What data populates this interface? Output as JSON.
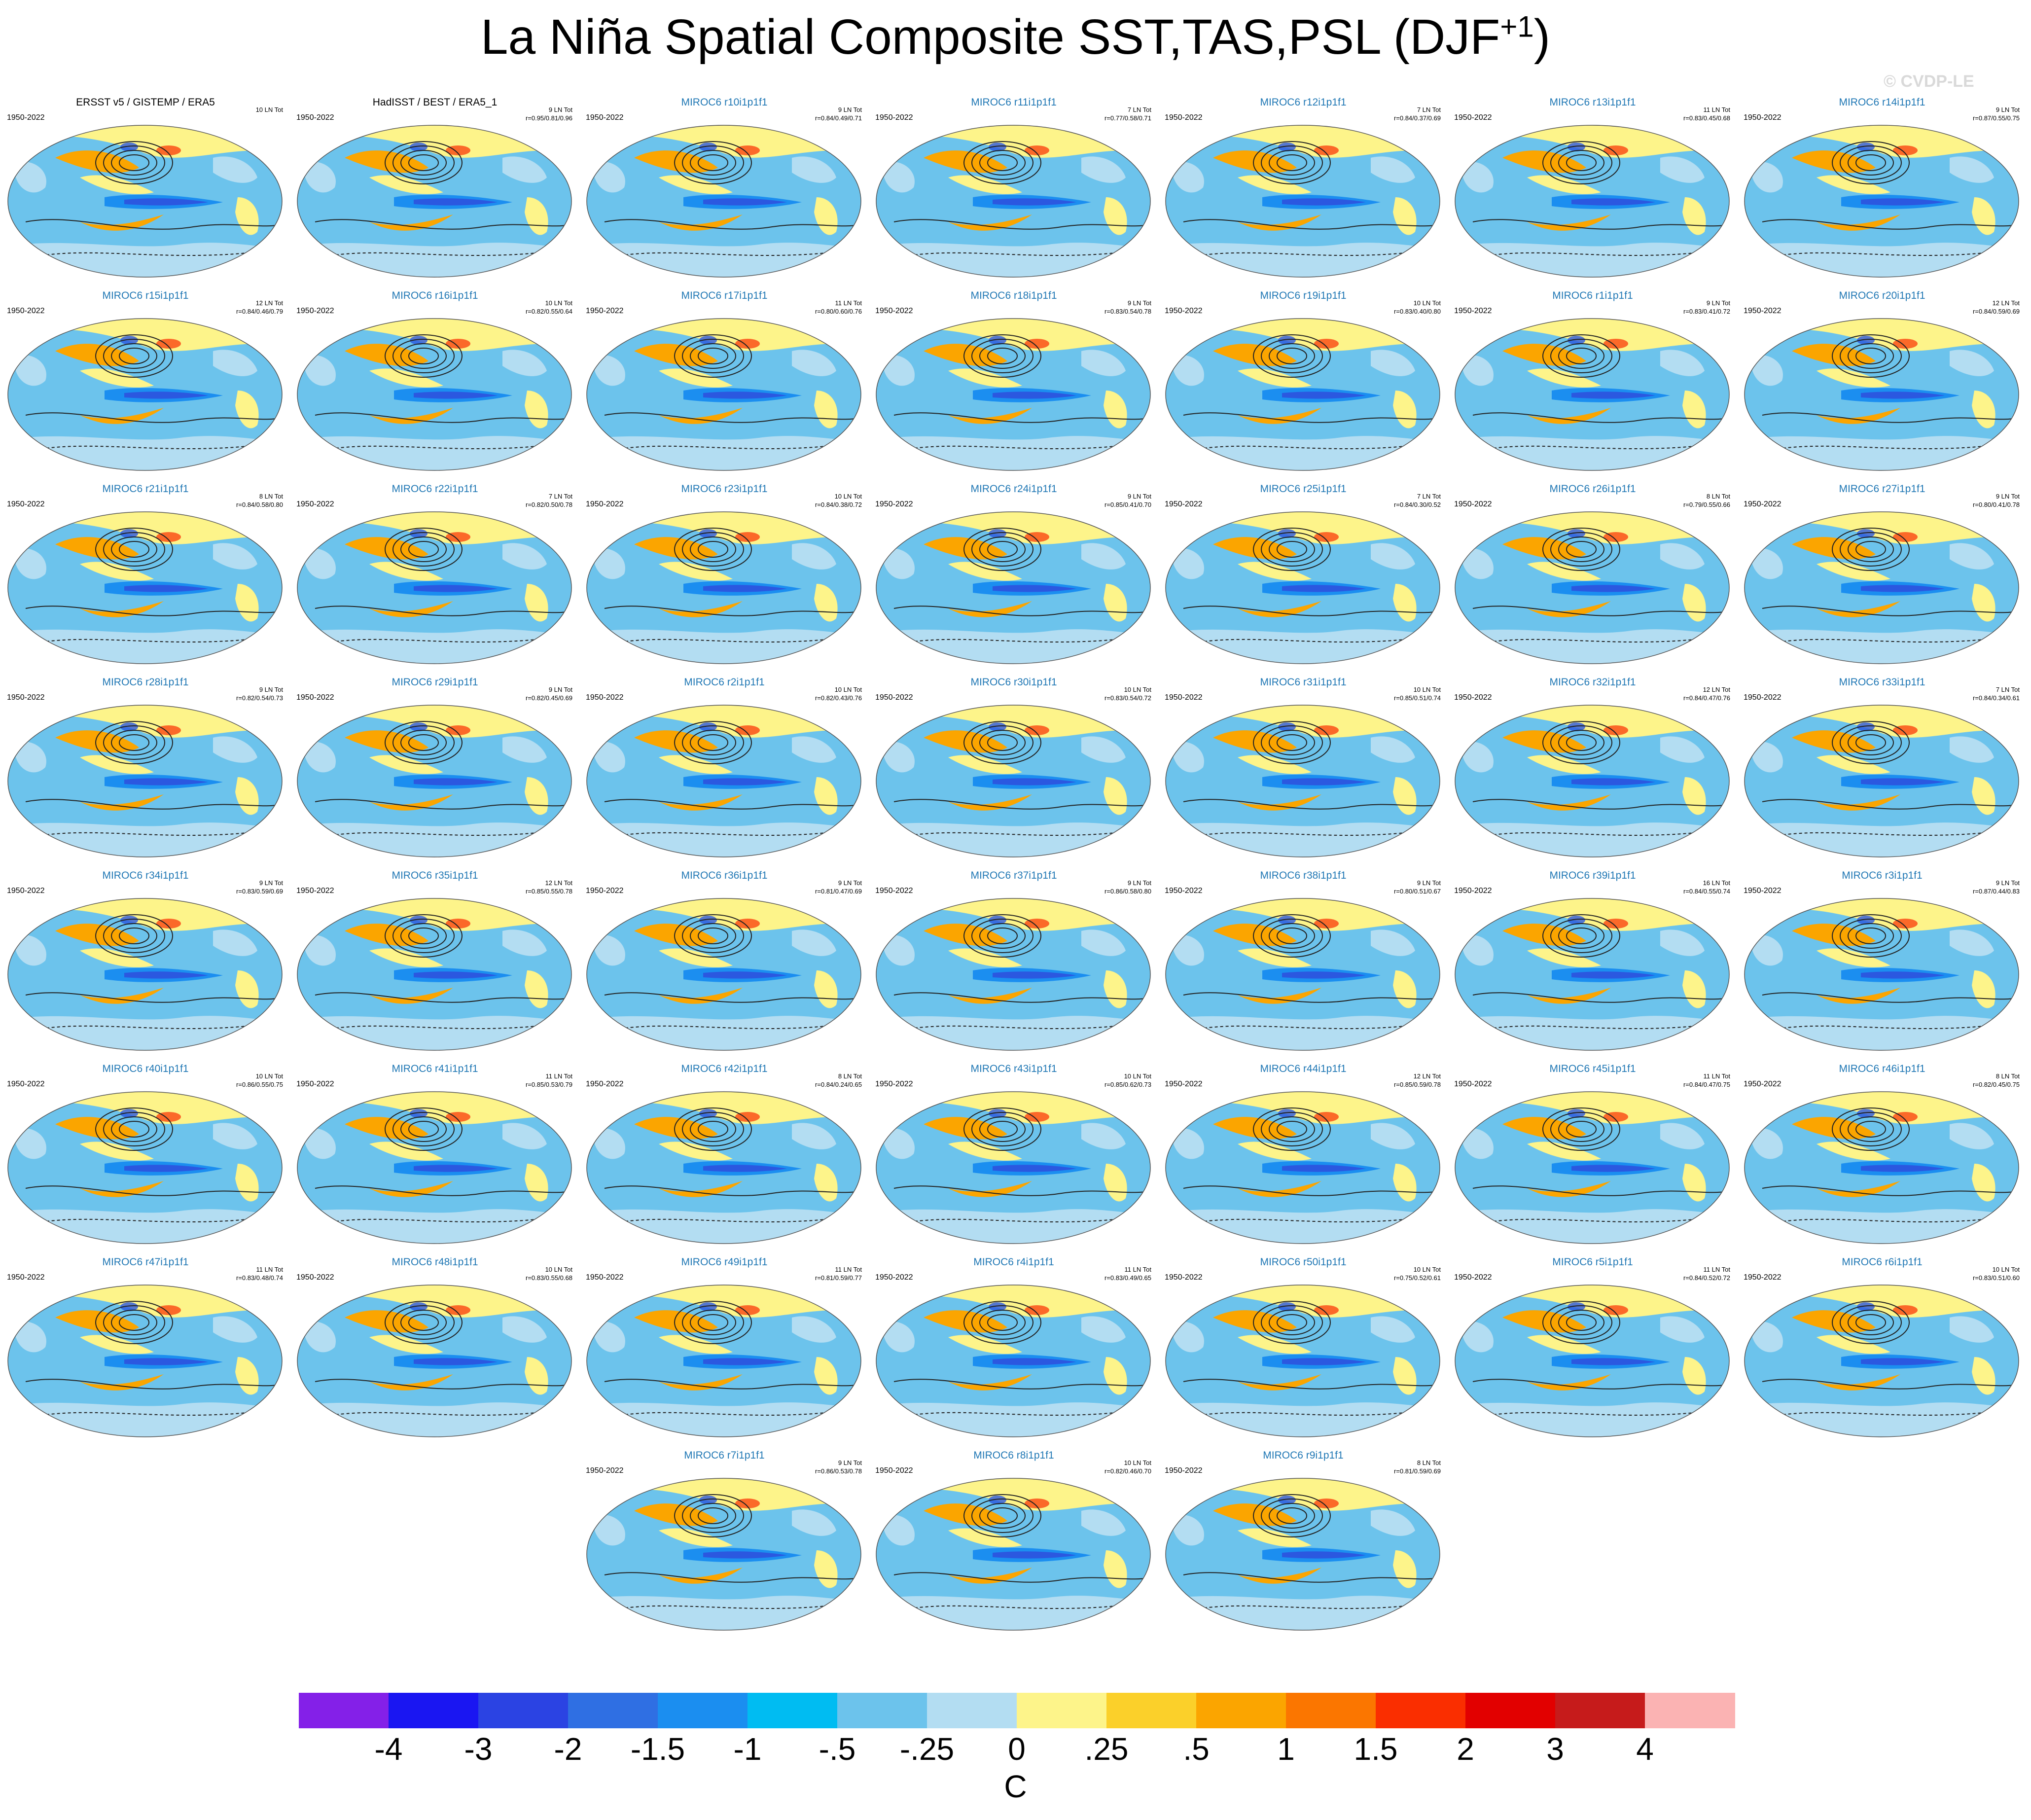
{
  "title": {
    "main": "La Niña Spatial Composite SST,TAS,PSL (DJF",
    "superscript": "+1",
    "close": ")"
  },
  "watermark": "© CVDP-LE",
  "title_color_obs": "#000000",
  "title_color_model": "#1f77b4",
  "panels": [
    {
      "title": "ERSST v5 / GISTEMP / ERA5",
      "period": "1950-2022",
      "count": "10 LN Tot",
      "corr": "",
      "obs": true
    },
    {
      "title": "HadISST / BEST / ERA5_1",
      "period": "1950-2022",
      "count": "9 LN Tot",
      "corr": "r=0.95/0.81/0.96",
      "obs": true
    },
    {
      "title": "MIROC6 r10i1p1f1",
      "period": "1950-2022",
      "count": "9 LN Tot",
      "corr": "r=0.84/0.49/0.71"
    },
    {
      "title": "MIROC6 r11i1p1f1",
      "period": "1950-2022",
      "count": "7 LN Tot",
      "corr": "r=0.77/0.58/0.71"
    },
    {
      "title": "MIROC6 r12i1p1f1",
      "period": "1950-2022",
      "count": "7 LN Tot",
      "corr": "r=0.84/0.37/0.69"
    },
    {
      "title": "MIROC6 r13i1p1f1",
      "period": "1950-2022",
      "count": "11 LN Tot",
      "corr": "r=0.83/0.45/0.68"
    },
    {
      "title": "MIROC6 r14i1p1f1",
      "period": "1950-2022",
      "count": "9 LN Tot",
      "corr": "r=0.87/0.55/0.75"
    },
    {
      "title": "MIROC6 r15i1p1f1",
      "period": "1950-2022",
      "count": "12 LN Tot",
      "corr": "r=0.84/0.46/0.79"
    },
    {
      "title": "MIROC6 r16i1p1f1",
      "period": "1950-2022",
      "count": "10 LN Tot",
      "corr": "r=0.82/0.55/0.64"
    },
    {
      "title": "MIROC6 r17i1p1f1",
      "period": "1950-2022",
      "count": "11 LN Tot",
      "corr": "r=0.80/0.60/0.76"
    },
    {
      "title": "MIROC6 r18i1p1f1",
      "period": "1950-2022",
      "count": "9 LN Tot",
      "corr": "r=0.83/0.54/0.78"
    },
    {
      "title": "MIROC6 r19i1p1f1",
      "period": "1950-2022",
      "count": "10 LN Tot",
      "corr": "r=0.83/0.40/0.80"
    },
    {
      "title": "MIROC6 r1i1p1f1",
      "period": "1950-2022",
      "count": "9 LN Tot",
      "corr": "r=0.83/0.41/0.72"
    },
    {
      "title": "MIROC6 r20i1p1f1",
      "period": "1950-2022",
      "count": "12 LN Tot",
      "corr": "r=0.84/0.59/0.69"
    },
    {
      "title": "MIROC6 r21i1p1f1",
      "period": "1950-2022",
      "count": "8 LN Tot",
      "corr": "r=0.84/0.58/0.80"
    },
    {
      "title": "MIROC6 r22i1p1f1",
      "period": "1950-2022",
      "count": "7 LN Tot",
      "corr": "r=0.82/0.50/0.78"
    },
    {
      "title": "MIROC6 r23i1p1f1",
      "period": "1950-2022",
      "count": "10 LN Tot",
      "corr": "r=0.84/0.38/0.72"
    },
    {
      "title": "MIROC6 r24i1p1f1",
      "period": "1950-2022",
      "count": "9 LN Tot",
      "corr": "r=0.85/0.41/0.70"
    },
    {
      "title": "MIROC6 r25i1p1f1",
      "period": "1950-2022",
      "count": "7 LN Tot",
      "corr": "r=0.84/0.30/0.52"
    },
    {
      "title": "MIROC6 r26i1p1f1",
      "period": "1950-2022",
      "count": "8 LN Tot",
      "corr": "r=0.79/0.55/0.66"
    },
    {
      "title": "MIROC6 r27i1p1f1",
      "period": "1950-2022",
      "count": "9 LN Tot",
      "corr": "r=0.80/0.41/0.78"
    },
    {
      "title": "MIROC6 r28i1p1f1",
      "period": "1950-2022",
      "count": "9 LN Tot",
      "corr": "r=0.82/0.54/0.73"
    },
    {
      "title": "MIROC6 r29i1p1f1",
      "period": "1950-2022",
      "count": "9 LN Tot",
      "corr": "r=0.82/0.45/0.69"
    },
    {
      "title": "MIROC6 r2i1p1f1",
      "period": "1950-2022",
      "count": "10 LN Tot",
      "corr": "r=0.82/0.43/0.76"
    },
    {
      "title": "MIROC6 r30i1p1f1",
      "period": "1950-2022",
      "count": "10 LN Tot",
      "corr": "r=0.83/0.54/0.72"
    },
    {
      "title": "MIROC6 r31i1p1f1",
      "period": "1950-2022",
      "count": "10 LN Tot",
      "corr": "r=0.85/0.51/0.74"
    },
    {
      "title": "MIROC6 r32i1p1f1",
      "period": "1950-2022",
      "count": "12 LN Tot",
      "corr": "r=0.84/0.47/0.76"
    },
    {
      "title": "MIROC6 r33i1p1f1",
      "period": "1950-2022",
      "count": "7 LN Tot",
      "corr": "r=0.84/0.34/0.61"
    },
    {
      "title": "MIROC6 r34i1p1f1",
      "period": "1950-2022",
      "count": "9 LN Tot",
      "corr": "r=0.83/0.59/0.69"
    },
    {
      "title": "MIROC6 r35i1p1f1",
      "period": "1950-2022",
      "count": "12 LN Tot",
      "corr": "r=0.85/0.55/0.78"
    },
    {
      "title": "MIROC6 r36i1p1f1",
      "period": "1950-2022",
      "count": "9 LN Tot",
      "corr": "r=0.81/0.47/0.69"
    },
    {
      "title": "MIROC6 r37i1p1f1",
      "period": "1950-2022",
      "count": "9 LN Tot",
      "corr": "r=0.86/0.58/0.80"
    },
    {
      "title": "MIROC6 r38i1p1f1",
      "period": "1950-2022",
      "count": "9 LN Tot",
      "corr": "r=0.80/0.51/0.67"
    },
    {
      "title": "MIROC6 r39i1p1f1",
      "period": "1950-2022",
      "count": "16 LN Tot",
      "corr": "r=0.84/0.55/0.74"
    },
    {
      "title": "MIROC6 r3i1p1f1",
      "period": "1950-2022",
      "count": "9 LN Tot",
      "corr": "r=0.87/0.44/0.83"
    },
    {
      "title": "MIROC6 r40i1p1f1",
      "period": "1950-2022",
      "count": "10 LN Tot",
      "corr": "r=0.86/0.55/0.75"
    },
    {
      "title": "MIROC6 r41i1p1f1",
      "period": "1950-2022",
      "count": "11 LN Tot",
      "corr": "r=0.85/0.53/0.79"
    },
    {
      "title": "MIROC6 r42i1p1f1",
      "period": "1950-2022",
      "count": "8 LN Tot",
      "corr": "r=0.84/0.24/0.65"
    },
    {
      "title": "MIROC6 r43i1p1f1",
      "period": "1950-2022",
      "count": "10 LN Tot",
      "corr": "r=0.85/0.62/0.73"
    },
    {
      "title": "MIROC6 r44i1p1f1",
      "period": "1950-2022",
      "count": "12 LN Tot",
      "corr": "r=0.85/0.59/0.78"
    },
    {
      "title": "MIROC6 r45i1p1f1",
      "period": "1950-2022",
      "count": "11 LN Tot",
      "corr": "r=0.84/0.47/0.75"
    },
    {
      "title": "MIROC6 r46i1p1f1",
      "period": "1950-2022",
      "count": "8 LN Tot",
      "corr": "r=0.82/0.45/0.75"
    },
    {
      "title": "MIROC6 r47i1p1f1",
      "period": "1950-2022",
      "count": "11 LN Tot",
      "corr": "r=0.83/0.48/0.74"
    },
    {
      "title": "MIROC6 r48i1p1f1",
      "period": "1950-2022",
      "count": "10 LN Tot",
      "corr": "r=0.83/0.55/0.68"
    },
    {
      "title": "MIROC6 r49i1p1f1",
      "period": "1950-2022",
      "count": "11 LN Tot",
      "corr": "r=0.81/0.59/0.77"
    },
    {
      "title": "MIROC6 r4i1p1f1",
      "period": "1950-2022",
      "count": "11 LN Tot",
      "corr": "r=0.83/0.49/0.65"
    },
    {
      "title": "MIROC6 r50i1p1f1",
      "period": "1950-2022",
      "count": "10 LN Tot",
      "corr": "r=0.75/0.52/0.61"
    },
    {
      "title": "MIROC6 r5i1p1f1",
      "period": "1950-2022",
      "count": "11 LN Tot",
      "corr": "r=0.84/0.52/0.72"
    },
    {
      "title": "MIROC6 r6i1p1f1",
      "period": "1950-2022",
      "count": "10 LN Tot",
      "corr": "r=0.83/0.51/0.60"
    },
    {
      "title": "MIROC6 r7i1p1f1",
      "period": "1950-2022",
      "count": "9 LN Tot",
      "corr": "r=0.86/0.53/0.78"
    },
    {
      "title": "MIROC6 r8i1p1f1",
      "period": "1950-2022",
      "count": "10 LN Tot",
      "corr": "r=0.82/0.46/0.70"
    },
    {
      "title": "MIROC6 r9i1p1f1",
      "period": "1950-2022",
      "count": "8 LN Tot",
      "corr": "r=0.81/0.59/0.69"
    }
  ],
  "colorbar": {
    "unit": "C",
    "labels": [
      "-4",
      "-3",
      "-2",
      "-1.5",
      "-1",
      "-.5",
      "-.25",
      "0",
      ".25",
      ".5",
      "1",
      "1.5",
      "2",
      "3",
      "4"
    ],
    "colors": [
      "#8420e8",
      "#1a16f2",
      "#2b43e3",
      "#2f6fe3",
      "#1b8ef0",
      "#00bcf2",
      "#6cc3ec",
      "#b3ddf2",
      "#fdf48a",
      "#fbd02a",
      "#fba500",
      "#fb7600",
      "#fa2e00",
      "#e20000",
      "#c61b1b",
      "#fbb3b3"
    ]
  },
  "map_colors": {
    "ocean_cold": "#2b58e0",
    "ocean_cool": "#1b8ef0",
    "ocean_light": "#6cc3ec",
    "pale": "#b3ddf2",
    "warm_yellow": "#fdf48a",
    "warm_orange": "#fba500",
    "hot": "#fa2e00",
    "coast": "#ffffff",
    "contour": "#222222"
  }
}
